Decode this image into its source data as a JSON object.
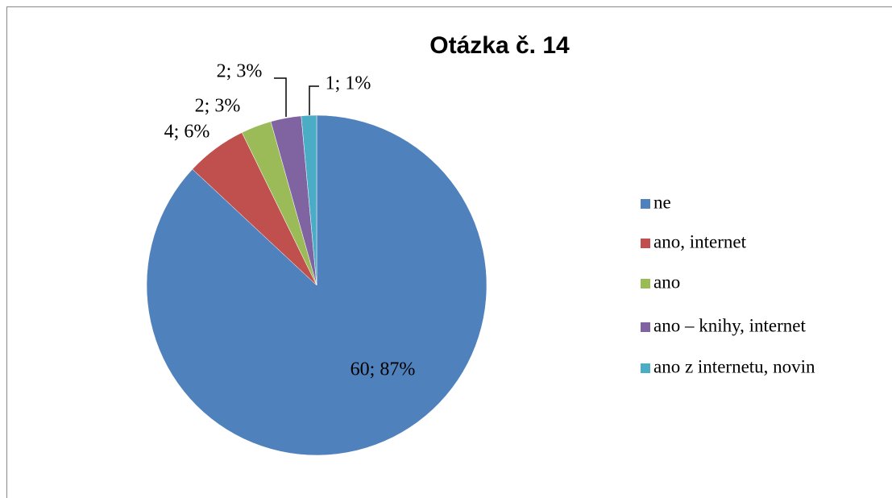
{
  "chart_data": {
    "type": "pie",
    "title": "Otázka č. 14",
    "categories": [
      "ne",
      "ano, internet",
      "ano",
      "ano – knihy, internet",
      "ano z internetu, novin"
    ],
    "values": [
      60,
      4,
      2,
      2,
      1
    ],
    "value_labels": [
      "60; 87%",
      "4; 6%",
      "2; 3%",
      "2; 3%",
      "1; 1%"
    ],
    "colors": [
      "#4f81bd",
      "#c0504d",
      "#9bbb59",
      "#8064a2",
      "#4bacc6"
    ],
    "legend": "right"
  }
}
